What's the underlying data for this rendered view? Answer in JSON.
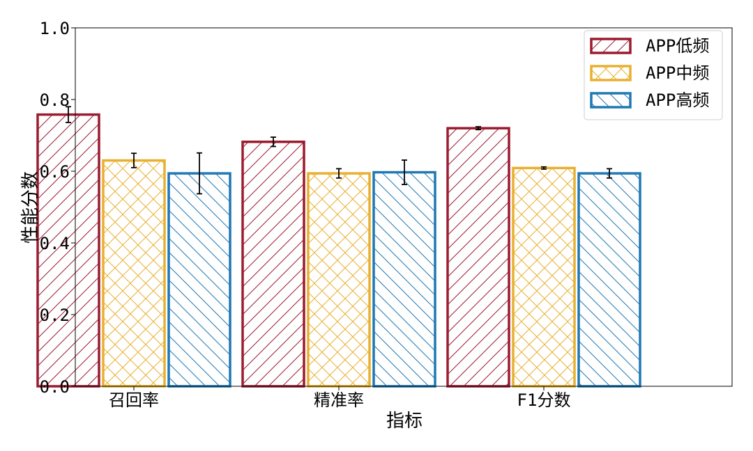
{
  "chart_data": {
    "type": "bar",
    "title": "",
    "xlabel": "指标",
    "ylabel": "性能分数",
    "ylim": [
      0.0,
      1.0
    ],
    "yticks": [
      "0.0",
      "0.2",
      "0.4",
      "0.6",
      "0.8",
      "1.0"
    ],
    "grid": false,
    "legend_position": "top-right",
    "categories": [
      "召回率",
      "精准率",
      "F1分数"
    ],
    "series": [
      {
        "name": "APP低频",
        "color": "#9b1b30",
        "hatch": "diagonal-forward",
        "values": [
          0.758,
          0.682,
          0.72
        ],
        "errors": [
          0.022,
          0.013,
          0.004
        ]
      },
      {
        "name": "APP中频",
        "color": "#e8b030",
        "hatch": "crosshatch",
        "values": [
          0.63,
          0.594,
          0.609
        ],
        "errors": [
          0.02,
          0.013,
          0.003
        ]
      },
      {
        "name": "APP高频",
        "color": "#1f78b4",
        "hatch": "diagonal-backward",
        "values": [
          0.594,
          0.597,
          0.594
        ],
        "errors": [
          0.057,
          0.034,
          0.013
        ]
      }
    ]
  }
}
